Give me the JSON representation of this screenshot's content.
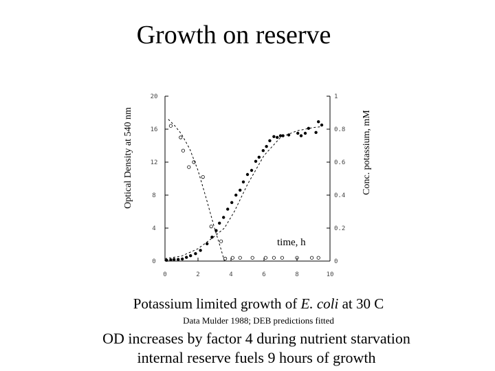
{
  "title": "Growth on reserve",
  "chart_data": {
    "type": "scatter",
    "xlabel": "time, h",
    "ylabel_left": "Optical Density at 540 nm",
    "ylabel_right": "Conc. potassium, mM",
    "xlim": [
      0,
      10
    ],
    "ylim_left": [
      0,
      20
    ],
    "ylim_right": [
      0,
      1
    ],
    "x_ticks": [
      "0",
      "2",
      "4",
      "6",
      "8",
      "10"
    ],
    "y_left_ticks": [
      "0",
      "4",
      "8",
      "12",
      "16",
      "20"
    ],
    "y_right_ticks": [
      "0",
      "0.2",
      "0.4",
      "0.6",
      "0.8",
      "1"
    ],
    "series": [
      {
        "axis": "left",
        "marker": "filled-dot",
        "points": [
          [
            0.1,
            0.1
          ],
          [
            0.35,
            0.15
          ],
          [
            0.55,
            0.2
          ],
          [
            0.8,
            0.2
          ],
          [
            1.05,
            0.25
          ],
          [
            1.3,
            0.45
          ],
          [
            1.55,
            0.65
          ],
          [
            1.85,
            0.9
          ],
          [
            2.15,
            1.3
          ],
          [
            2.55,
            2.1
          ],
          [
            2.85,
            2.9
          ],
          [
            3.1,
            3.7
          ],
          [
            3.3,
            4.6
          ],
          [
            3.55,
            5.3
          ],
          [
            3.8,
            6.3
          ],
          [
            4.05,
            7.1
          ],
          [
            4.3,
            8.0
          ],
          [
            4.55,
            8.6
          ],
          [
            4.75,
            9.6
          ],
          [
            5.0,
            10.5
          ],
          [
            5.25,
            11.0
          ],
          [
            5.5,
            12.1
          ],
          [
            5.7,
            12.6
          ],
          [
            5.95,
            13.4
          ],
          [
            6.15,
            13.9
          ],
          [
            6.35,
            14.6
          ],
          [
            6.6,
            15.1
          ],
          [
            6.8,
            15.0
          ],
          [
            7.0,
            15.2
          ],
          [
            7.15,
            15.2
          ],
          [
            7.5,
            15.3
          ],
          [
            8.05,
            15.5
          ],
          [
            8.25,
            15.2
          ],
          [
            8.5,
            15.5
          ],
          [
            8.7,
            16.1
          ],
          [
            9.15,
            15.6
          ],
          [
            9.3,
            16.9
          ],
          [
            9.5,
            16.5
          ]
        ]
      },
      {
        "axis": "right",
        "marker": "open-circle",
        "points": [
          [
            0.35,
            0.82
          ],
          [
            0.95,
            0.75
          ],
          [
            1.1,
            0.67
          ],
          [
            1.45,
            0.57
          ],
          [
            1.75,
            0.6
          ],
          [
            2.3,
            0.51
          ],
          [
            2.8,
            0.21
          ],
          [
            3.4,
            0.12
          ],
          [
            3.65,
            0.015
          ],
          [
            4.1,
            0.02
          ],
          [
            4.55,
            0.02
          ],
          [
            5.3,
            0.02
          ],
          [
            6.1,
            0.02
          ],
          [
            6.6,
            0.02
          ],
          [
            7.1,
            0.02
          ],
          [
            8.0,
            0.02
          ],
          [
            8.9,
            0.02
          ],
          [
            9.3,
            0.02
          ]
        ]
      }
    ],
    "fits": [
      {
        "axis": "left",
        "name": "DEB prediction OD",
        "points": [
          [
            0,
            0.3
          ],
          [
            1,
            0.6
          ],
          [
            2,
            1.5
          ],
          [
            3,
            3.0
          ],
          [
            3.6,
            4.0
          ],
          [
            4.2,
            6.0
          ],
          [
            5,
            9.3
          ],
          [
            6,
            12.8
          ],
          [
            7,
            15.0
          ],
          [
            8,
            15.8
          ],
          [
            9,
            16.2
          ],
          [
            9.5,
            16.3
          ]
        ]
      },
      {
        "axis": "right",
        "name": "DEB prediction potassium",
        "points": [
          [
            0.2,
            0.86
          ],
          [
            0.6,
            0.82
          ],
          [
            1,
            0.77
          ],
          [
            1.5,
            0.68
          ],
          [
            2,
            0.55
          ],
          [
            2.5,
            0.38
          ],
          [
            3,
            0.2
          ],
          [
            3.4,
            0.07
          ],
          [
            3.6,
            0.0
          ],
          [
            10,
            0.0
          ]
        ]
      }
    ]
  },
  "captions": {
    "line1_pre": "Potassium limited growth of ",
    "line1_italic": "E. coli",
    "line1_post": " at 30 C",
    "line2": "Data Mulder 1988; DEB predictions fitted",
    "line3": "OD increases by factor 4 during nutrient starvation",
    "line4": "internal reserve fuels 9 hours of growth"
  }
}
